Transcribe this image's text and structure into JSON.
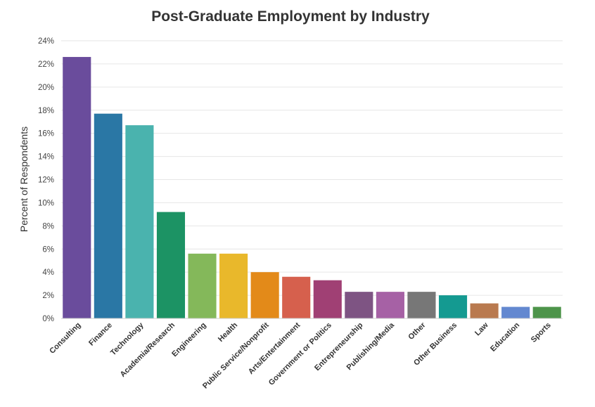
{
  "chart_data": {
    "type": "bar",
    "title": "Post-Graduate Employment by Industry",
    "xlabel": "",
    "ylabel": "Percent of Respondents",
    "ylim": [
      0,
      24
    ],
    "yticks": [
      0,
      2,
      4,
      6,
      8,
      10,
      12,
      14,
      16,
      18,
      20,
      22,
      24
    ],
    "ytick_format": "%",
    "grid": true,
    "legend": "none",
    "categories": [
      "Consulting",
      "Finance",
      "Technology",
      "Academia/Research",
      "Engineering",
      "Health",
      "Public Service/Nonprofit",
      "Arts/Entertainment",
      "Government or Politics",
      "Entrepreneurship",
      "Publishing/Media",
      "Other",
      "Other Business",
      "Law",
      "Education",
      "Sports"
    ],
    "values": [
      22.6,
      17.7,
      16.7,
      9.2,
      5.6,
      5.6,
      4.0,
      3.6,
      3.3,
      2.3,
      2.3,
      2.3,
      2.0,
      1.3,
      1.0,
      1.0
    ],
    "colors": [
      "#6a4c9c",
      "#2a77a5",
      "#4ab3ae",
      "#1c9364",
      "#84b85a",
      "#e9b82b",
      "#e38a19",
      "#d6604d",
      "#a04074",
      "#7e5483",
      "#a661a5",
      "#777777",
      "#149a91",
      "#b97a4f",
      "#6388d0",
      "#4d944a"
    ]
  }
}
